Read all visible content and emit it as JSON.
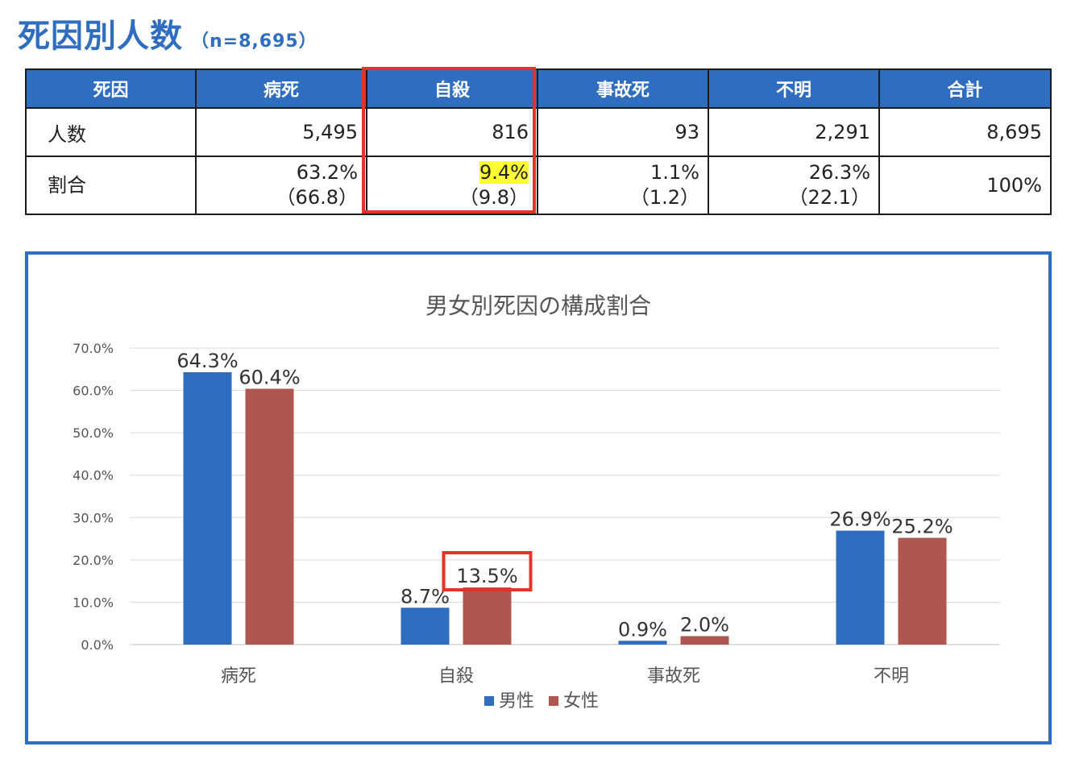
{
  "header": {
    "title": "死因別人数",
    "subtitle": "（n=8,695）"
  },
  "table": {
    "headers": [
      "死因",
      "病死",
      "自殺",
      "事故死",
      "不明",
      "合計"
    ],
    "rows": [
      {
        "label": "人数",
        "cells": [
          [
            "5,495"
          ],
          [
            "816"
          ],
          [
            "93"
          ],
          [
            "2,291"
          ],
          [
            "8,695"
          ]
        ]
      },
      {
        "label": "割合",
        "cells": [
          [
            "63.2%",
            "（66.8）"
          ],
          [
            "9.4%",
            "（9.8）"
          ],
          [
            "1.1%",
            "（1.2）"
          ],
          [
            "26.3%",
            "（22.1）"
          ],
          [
            "100%"
          ]
        ]
      }
    ],
    "highlight_column": "自殺",
    "highlighted_value": "9.4%"
  },
  "colors": {
    "brand_blue": "#2e6dc0",
    "male": "#2e6dc0",
    "female": "#b0554f",
    "emphasis_red": "#e53327",
    "highlight_yellow": "#ffff33"
  },
  "chart_data": {
    "type": "bar",
    "title": "男女別死因の構成割合",
    "categories": [
      "病死",
      "自殺",
      "事故死",
      "不明"
    ],
    "series": [
      {
        "name": "男性",
        "values": [
          64.3,
          8.7,
          0.9,
          26.9
        ],
        "labels": [
          "64.3%",
          "8.7%",
          "0.9%",
          "26.9%"
        ]
      },
      {
        "name": "女性",
        "values": [
          60.4,
          13.5,
          2.0,
          25.2
        ],
        "labels": [
          "60.4%",
          "13.5%",
          "2.0%",
          "25.2%"
        ]
      }
    ],
    "ylim": [
      0,
      70
    ],
    "yticks": [
      "0.0%",
      "10.0%",
      "20.0%",
      "30.0%",
      "40.0%",
      "50.0%",
      "60.0%",
      "70.0%"
    ],
    "grid": true,
    "legend": "bottom",
    "emphasized_label": "13.5%"
  }
}
